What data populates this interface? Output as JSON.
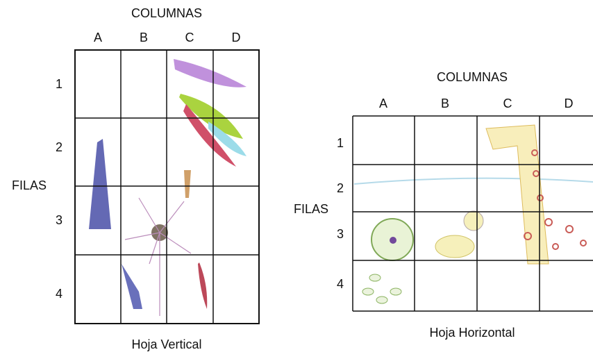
{
  "panels": [
    {
      "title": "COLUMNAS",
      "columns": [
        "A",
        "B",
        "C",
        "D"
      ],
      "rows": [
        "1",
        "2",
        "3",
        "4"
      ],
      "side_label": "FILAS",
      "caption": "Hoja Vertical"
    },
    {
      "title": "COLUMNAS",
      "columns": [
        "A",
        "B",
        "C",
        "D"
      ],
      "rows": [
        "1",
        "2",
        "3",
        "4"
      ],
      "side_label": "FILAS",
      "caption": "Hoja Horizontal"
    }
  ]
}
